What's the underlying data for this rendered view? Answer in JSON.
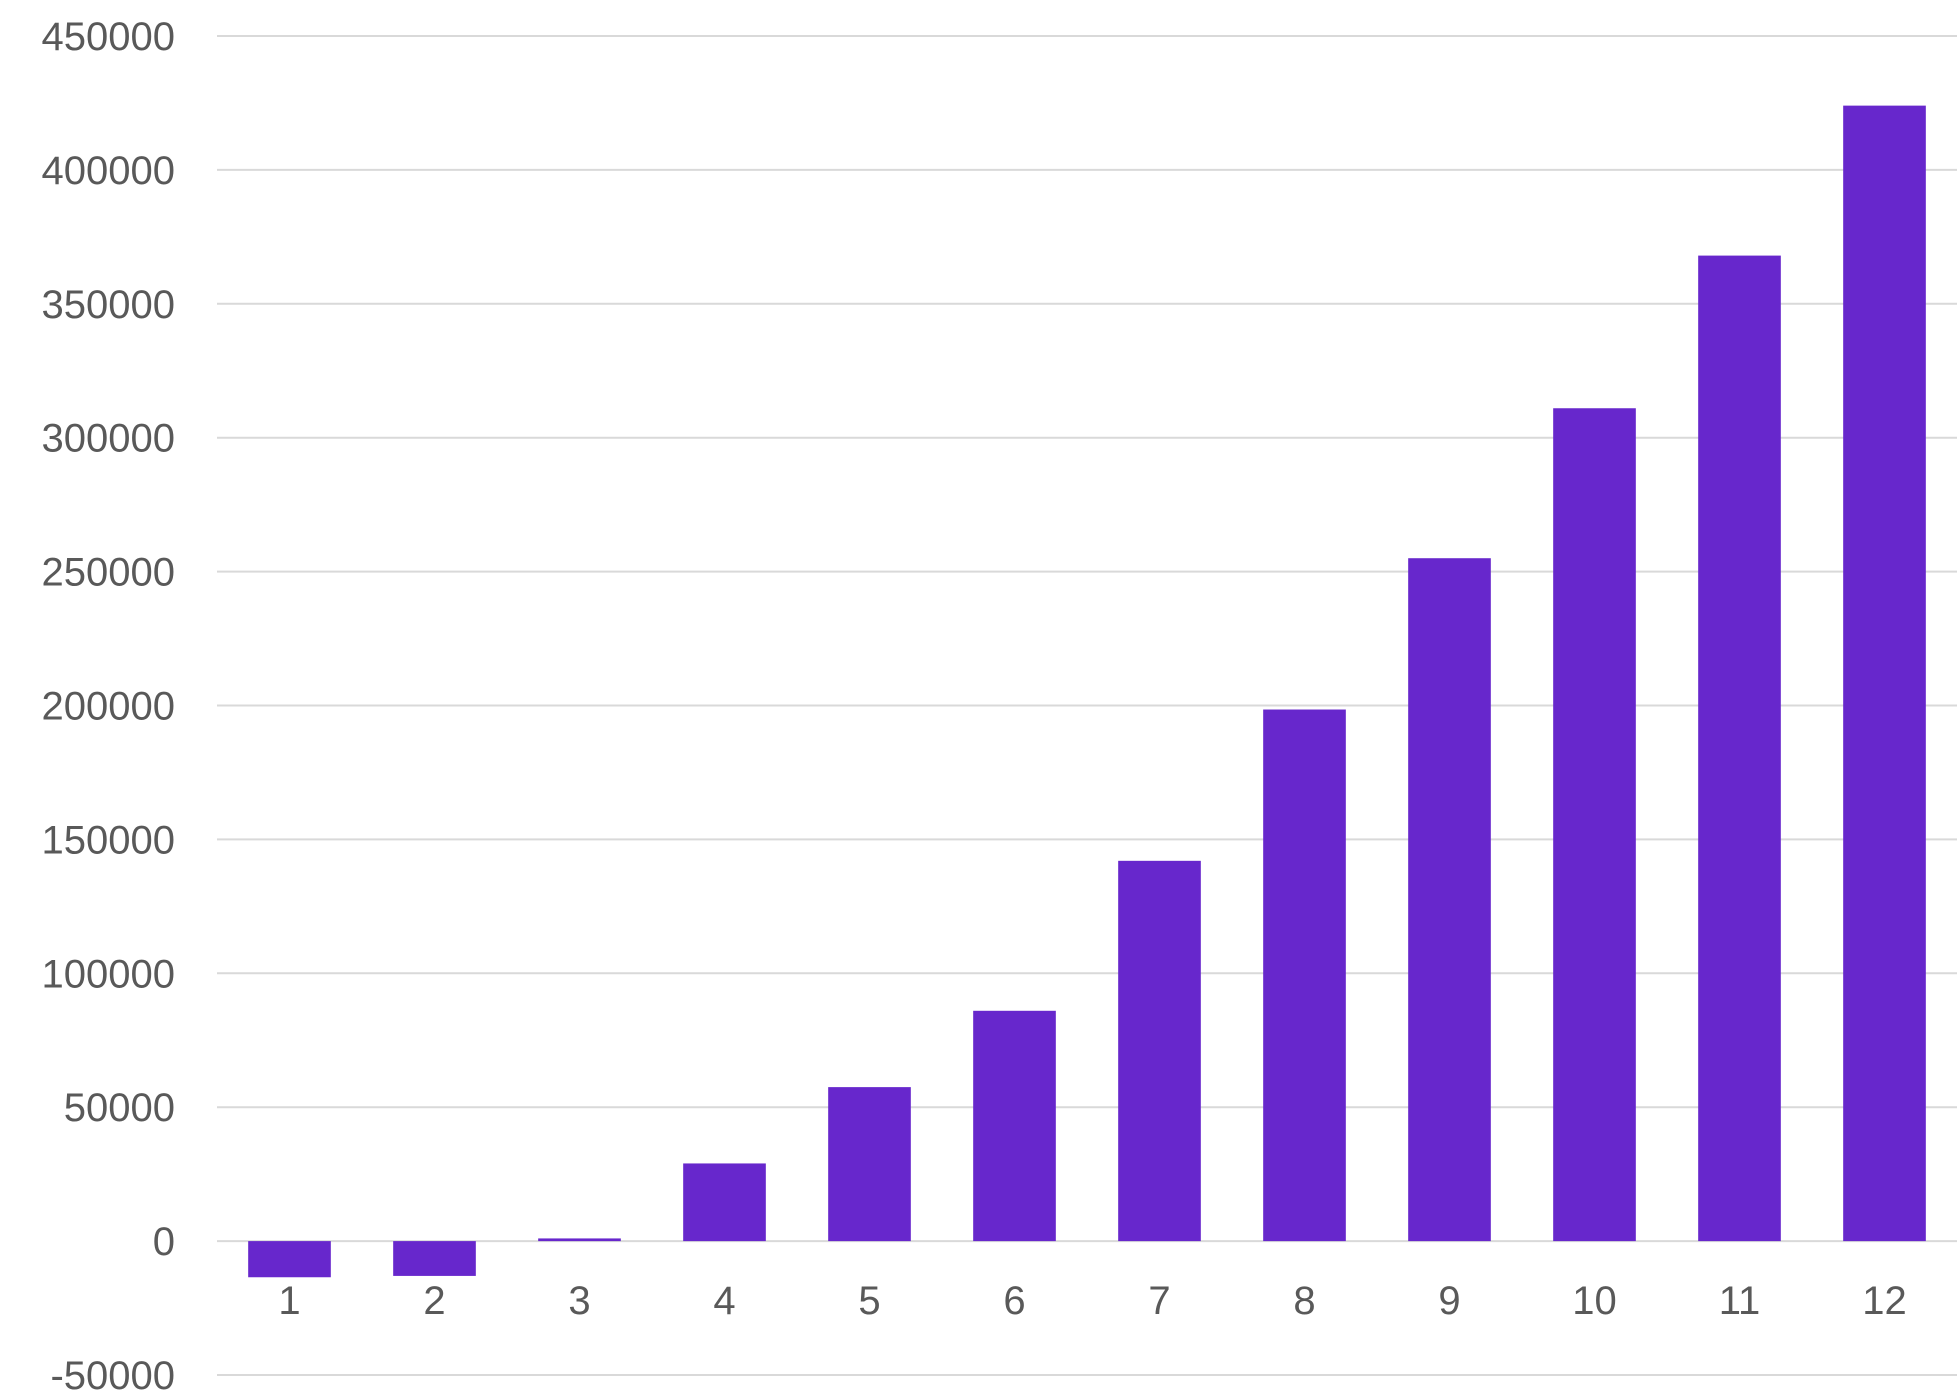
{
  "chart_data": {
    "type": "bar",
    "title": "",
    "xlabel": "",
    "ylabel": "",
    "categories": [
      "1",
      "2",
      "3",
      "4",
      "5",
      "6",
      "7",
      "8",
      "9",
      "10",
      "11",
      "12"
    ],
    "values": [
      -13500,
      -13000,
      1000,
      29000,
      57500,
      86000,
      142000,
      198500,
      255000,
      311000,
      368000,
      424000
    ],
    "ylim": [
      -50000,
      450000
    ],
    "yticks": [
      "-50000",
      "0",
      "50000",
      "100000",
      "150000",
      "200000",
      "250000",
      "300000",
      "350000",
      "400000",
      "450000"
    ],
    "grid": true,
    "legend": "none",
    "bar_color": "#6727cc"
  }
}
